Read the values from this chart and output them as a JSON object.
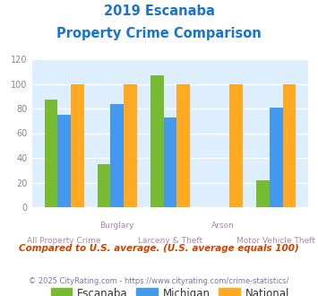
{
  "title_line1": "2019 Escanaba",
  "title_line2": "Property Crime Comparison",
  "title_color": "#1874cd",
  "categories": [
    "All Property Crime",
    "Burglary",
    "Larceny & Theft",
    "Arson",
    "Motor Vehicle Theft"
  ],
  "top_labels": [
    "",
    "Burglary",
    "",
    "Arson",
    ""
  ],
  "bottom_labels": [
    "All Property Crime",
    "",
    "Larceny & Theft",
    "",
    "Motor Vehicle Theft"
  ],
  "escanaba": [
    87,
    35,
    107,
    0,
    22
  ],
  "michigan": [
    75,
    84,
    73,
    0,
    81
  ],
  "national": [
    100,
    100,
    100,
    100,
    100
  ],
  "escanaba_color": "#77bb33",
  "michigan_color": "#4499ee",
  "national_color": "#ffaa22",
  "ylim": [
    0,
    120
  ],
  "yticks": [
    0,
    20,
    40,
    60,
    80,
    100,
    120
  ],
  "bar_width": 0.25,
  "plot_bg_color": "#ddeeff",
  "grid_color": "#ffffff",
  "legend_labels": [
    "Escanaba",
    "Michigan",
    "National"
  ],
  "footnote1": "Compared to U.S. average. (U.S. average equals 100)",
  "footnote2": "© 2025 CityRating.com - https://www.cityrating.com/crime-statistics/",
  "footnote1_color": "#cc4400",
  "footnote2_color": "#7777aa",
  "label_color": "#aa88aa"
}
